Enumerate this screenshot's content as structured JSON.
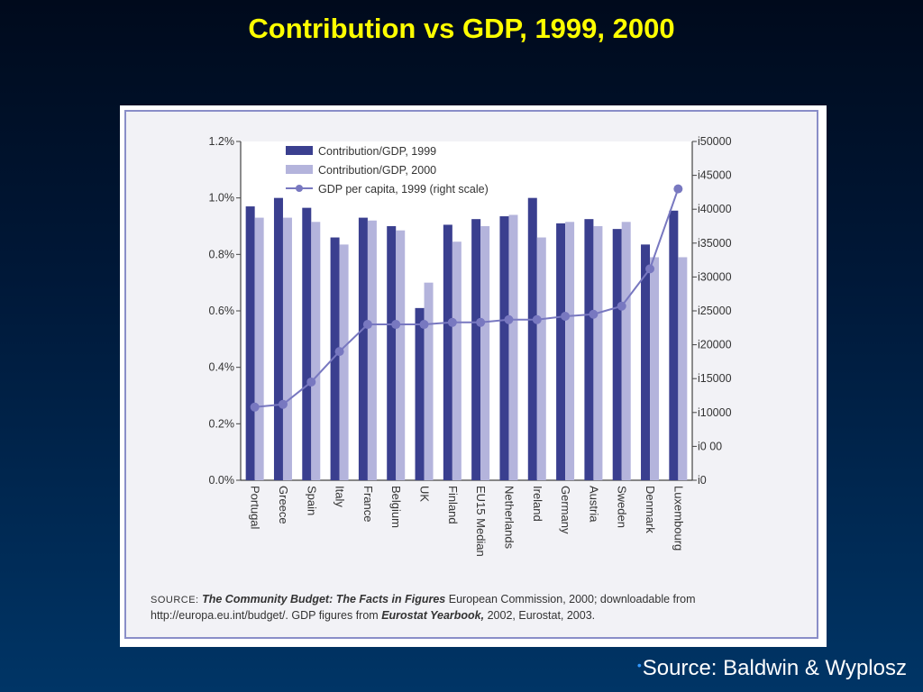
{
  "slide": {
    "title": "Contribution vs GDP, 1999, 2000",
    "footer_bullet": "•",
    "footer": "Source: Baldwin & Wyplosz"
  },
  "note": {
    "label": "SOURCE:",
    "title_italic": "The Community Budget: The Facts in Figures",
    "text1": "European Commission, 2000; downloadable from",
    "text2": "http://europa.eu.int/budget/. GDP figures from",
    "title2_italic": "Eurostat Yearbook,",
    "text3": "2002, Eurostat, 2003."
  },
  "chart_data": {
    "type": "bar",
    "categories": [
      "Portugal",
      "Greece",
      "Spain",
      "Italy",
      "France",
      "Belgium",
      "UK",
      "Finland",
      "EU15 Median",
      "Netherlands",
      "Ireland",
      "Germany",
      "Austria",
      "Sweden",
      "Denmark",
      "Luxembourg"
    ],
    "series": [
      {
        "name": "Contribution/GDP, 1999",
        "type": "bar",
        "axis": "left",
        "color": "#3a3f8f",
        "values": [
          0.97,
          1.0,
          0.965,
          0.86,
          0.93,
          0.9,
          0.61,
          0.905,
          0.925,
          0.935,
          1.0,
          0.91,
          0.925,
          0.89,
          0.835,
          0.955
        ]
      },
      {
        "name": "Contribution/GDP, 2000",
        "type": "bar",
        "axis": "left",
        "color": "#b4b4dc",
        "values": [
          0.93,
          0.93,
          0.915,
          0.835,
          0.92,
          0.885,
          0.7,
          0.845,
          0.9,
          0.94,
          0.86,
          0.915,
          0.9,
          0.915,
          0.79,
          0.79
        ]
      },
      {
        "name": "GDP per capita, 1999 (right scale)",
        "type": "line",
        "axis": "right",
        "color": "#7878c0",
        "values": [
          10800,
          11200,
          14500,
          19000,
          23000,
          23000,
          23000,
          23300,
          23300,
          23700,
          23700,
          24200,
          24500,
          25700,
          31200,
          43000
        ]
      }
    ],
    "yleft": {
      "min": 0,
      "max": 1.2,
      "ticks": [
        "0.0%",
        "0.2%",
        "0.4%",
        "0.6%",
        "0.8%",
        "1.0%",
        "1.2%"
      ]
    },
    "yright": {
      "min": 0,
      "max": 50000,
      "ticks": [
        "i0",
        "i0 00",
        "i10000",
        "i15000",
        "i20000",
        "i25000",
        "i30000",
        "i35000",
        "i40000",
        "i45000",
        "i50000"
      ]
    },
    "legend": "top-left",
    "grid": false
  }
}
